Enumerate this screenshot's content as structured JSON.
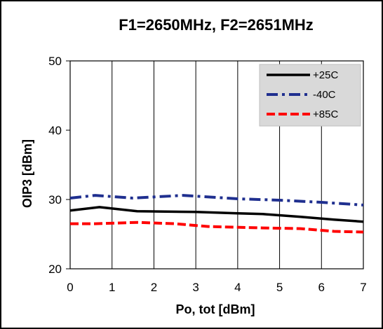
{
  "chart_data": {
    "type": "line",
    "title": "F1=2650MHz, F2=2651MHz",
    "xlabel": "Po, tot [dBm]",
    "ylabel": "OIP3 [dBm]",
    "xlim": [
      0,
      7
    ],
    "ylim": [
      20,
      50
    ],
    "x_ticks": [
      "0",
      "1",
      "2",
      "3",
      "4",
      "5",
      "6",
      "7"
    ],
    "y_ticks": [
      "20",
      "30",
      "40",
      "50"
    ],
    "grid": "vertical",
    "legend_position": "top-right",
    "series": [
      {
        "name": "+25C",
        "color": "#000000",
        "style": "solid",
        "points": [
          [
            0,
            28.4
          ],
          [
            0.7,
            28.9
          ],
          [
            1.6,
            28.3
          ],
          [
            3,
            28.2
          ],
          [
            4,
            28.0
          ],
          [
            4.6,
            27.9
          ],
          [
            5.5,
            27.5
          ],
          [
            6.3,
            27.1
          ],
          [
            7,
            26.8
          ]
        ]
      },
      {
        "name": "-40C",
        "color": "#1f2f8f",
        "style": "dashdot",
        "points": [
          [
            0,
            30.2
          ],
          [
            0.6,
            30.6
          ],
          [
            1.5,
            30.2
          ],
          [
            2.7,
            30.6
          ],
          [
            4,
            30.1
          ],
          [
            5,
            29.9
          ],
          [
            6,
            29.6
          ],
          [
            7,
            29.2
          ]
        ]
      },
      {
        "name": "+85C",
        "color": "#ff0000",
        "style": "dashed",
        "points": [
          [
            0,
            26.5
          ],
          [
            0.6,
            26.5
          ],
          [
            1.6,
            26.7
          ],
          [
            2.5,
            26.5
          ],
          [
            3.3,
            26.1
          ],
          [
            4.6,
            25.9
          ],
          [
            5.5,
            25.8
          ],
          [
            6.3,
            25.4
          ],
          [
            7,
            25.3
          ]
        ]
      }
    ]
  }
}
